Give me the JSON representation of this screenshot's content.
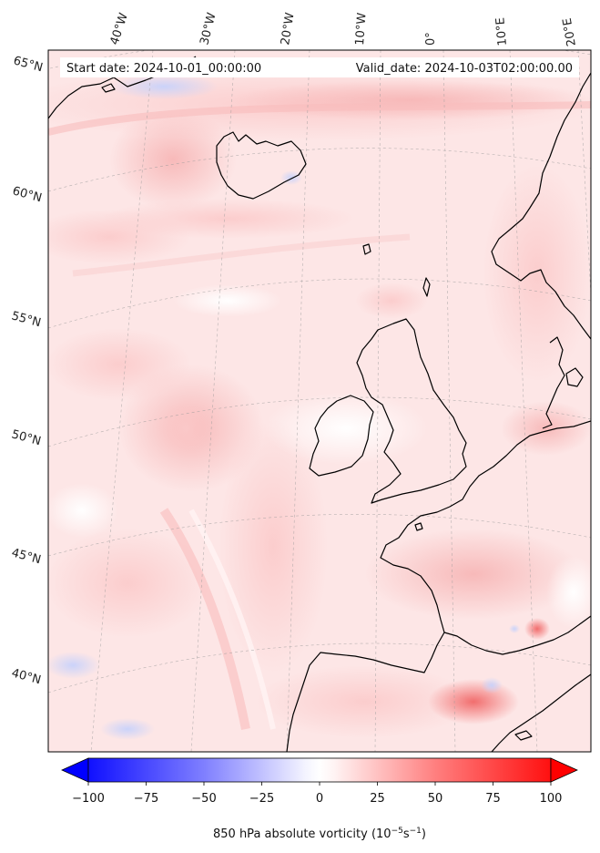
{
  "header": {
    "start_date": "Start date: 2024-10-01_00:00:00",
    "valid_date": "Valid_date: 2024-10-03T02:00:00.00"
  },
  "graticule": {
    "longitude_labels": [
      "40°W",
      "30°W",
      "20°W",
      "10°W",
      "0°",
      "10°E",
      "20°E"
    ],
    "latitude_labels": [
      "65°N",
      "60°N",
      "55°N",
      "50°N",
      "45°N",
      "40°N"
    ]
  },
  "colorbar": {
    "ticks": [
      "−100",
      "−75",
      "−50",
      "−25",
      "0",
      "25",
      "50",
      "75",
      "100"
    ],
    "min": -100,
    "max": 100,
    "extend": "both",
    "colormap": "bwr",
    "label_text": "850 hPa absolute vorticity (10",
    "label_exp1": "−5",
    "label_mid": "s",
    "label_exp2": "−1",
    "label_close": ")"
  },
  "map": {
    "variable": "850 hPa absolute vorticity",
    "coastline_color": "#000000",
    "background_tint": "#fde3e3",
    "projection": "conic"
  }
}
